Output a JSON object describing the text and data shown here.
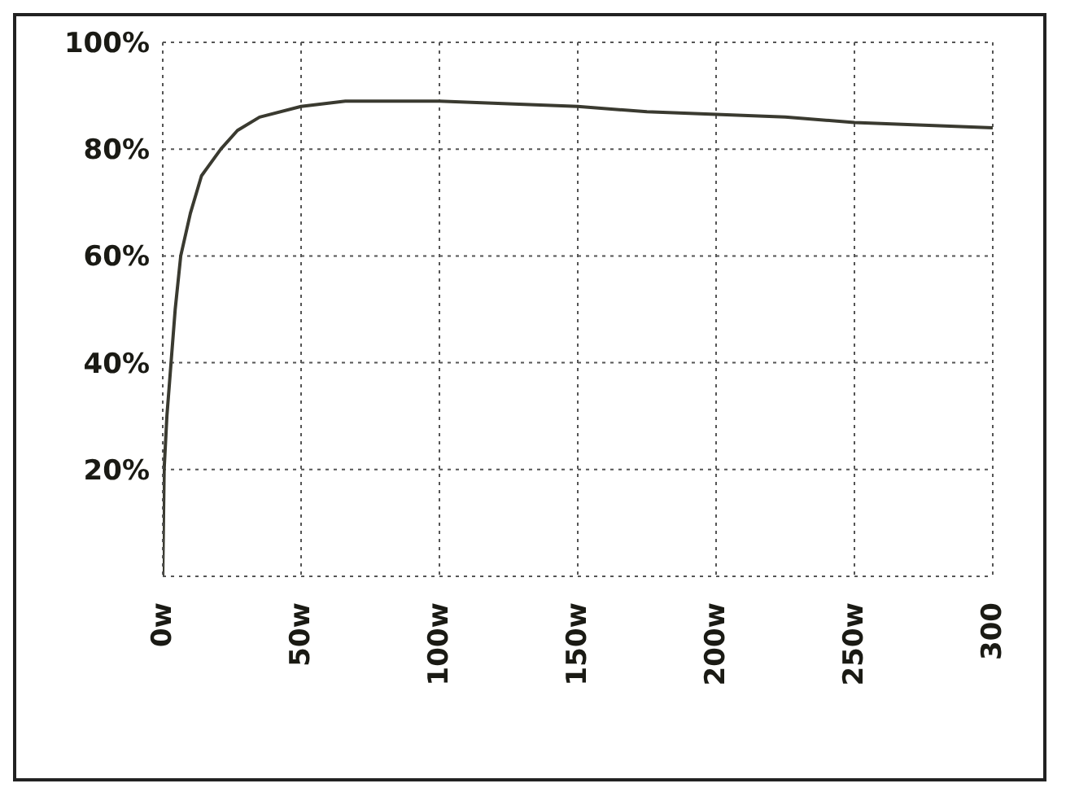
{
  "chart_data": {
    "type": "line",
    "x": [
      0,
      0.5,
      1.5,
      3,
      4.5,
      6.5,
      10,
      14,
      21,
      27,
      35,
      50,
      66,
      100,
      125,
      150,
      175,
      200,
      225,
      250,
      275,
      300
    ],
    "series": [
      {
        "color": "#3a3a30",
        "values": [
          0,
          20,
          30,
          40,
          50,
          60,
          68,
          75,
          80,
          83.5,
          86,
          88,
          89,
          89,
          88.5,
          88,
          87,
          86.5,
          86,
          85,
          84.5,
          84
        ]
      }
    ],
    "xlim": [
      0,
      300
    ],
    "xticks": [
      {
        "value": 0,
        "label": "0w"
      },
      {
        "value": 50,
        "label": "50w"
      },
      {
        "value": 100,
        "label": "100w"
      },
      {
        "value": 150,
        "label": "150w"
      },
      {
        "value": 200,
        "label": "200w"
      },
      {
        "value": 250,
        "label": "250w"
      },
      {
        "value": 300,
        "label": "300"
      }
    ],
    "ylim": [
      0,
      100
    ],
    "yticks": [
      {
        "value": 0,
        "label": null
      },
      {
        "value": 20,
        "label": "20%"
      },
      {
        "value": 40,
        "label": "40%"
      },
      {
        "value": 60,
        "label": "60%"
      },
      {
        "value": 80,
        "label": "80%"
      },
      {
        "value": 100,
        "label": "100%"
      }
    ],
    "grid": true,
    "marker": "none",
    "line_style": "solid"
  }
}
